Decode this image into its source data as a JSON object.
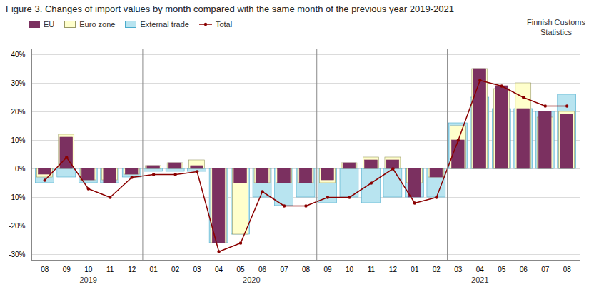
{
  "chart_data": {
    "type": "bar",
    "title": "Figure 3. Changes of import values by month compared with the same month of the previous year 2019-2021",
    "categories": [
      "08",
      "09",
      "10",
      "11",
      "12",
      "01",
      "02",
      "03",
      "04",
      "05",
      "06",
      "07",
      "08",
      "09",
      "10",
      "11",
      "12",
      "01",
      "02",
      "03",
      "04",
      "05",
      "06",
      "07",
      "08"
    ],
    "series": [
      {
        "name": "EU",
        "type": "bar",
        "color": "#7B3060",
        "values": [
          -2,
          11,
          -4,
          -5,
          -2,
          1,
          2,
          1,
          -26,
          -5,
          -5,
          -5,
          -5,
          -4,
          2,
          3,
          3,
          -10,
          -3,
          10,
          35,
          29,
          21,
          20,
          19
        ]
      },
      {
        "name": "Euro zone",
        "type": "bar",
        "color": "#FFFFCC",
        "values": [
          -3,
          12,
          -4,
          -4,
          -2,
          1,
          2,
          3,
          -26,
          -23,
          -5,
          -5,
          -5,
          -5,
          2,
          4,
          4,
          -5,
          -3,
          15,
          35,
          28,
          30,
          18,
          20
        ]
      },
      {
        "name": "External trade",
        "type": "bar",
        "color": "#B8E4F0",
        "values": [
          -5,
          -3,
          -5,
          -5,
          -3,
          -1,
          -1,
          -1,
          -26,
          -23,
          -10,
          -13,
          -10,
          -12,
          -10,
          -12,
          -10,
          -10,
          -10,
          16,
          25,
          21,
          21,
          20,
          26
        ]
      },
      {
        "name": "Total",
        "type": "line",
        "color": "#8B0000",
        "marker": "circle",
        "values": [
          -4,
          4,
          -7,
          -10,
          -3,
          -2,
          -2,
          -1,
          -29,
          -26,
          -8,
          -13,
          -13,
          -10,
          -10,
          -5,
          0,
          -12,
          -10,
          10,
          31,
          29,
          25,
          22,
          22
        ]
      }
    ],
    "ylim": [
      -32,
      42
    ],
    "yticks": [
      {
        "value": -30,
        "label": "-30%"
      },
      {
        "value": -20,
        "label": "-20%"
      },
      {
        "value": -10,
        "label": "-10%"
      },
      {
        "value": 0,
        "label": "0%"
      },
      {
        "value": 10,
        "label": "10%"
      },
      {
        "value": 20,
        "label": "20%"
      },
      {
        "value": 30,
        "label": "30%"
      },
      {
        "value": 40,
        "label": "40%"
      }
    ],
    "grid": true,
    "legend": "top-left",
    "annotations": [
      {
        "text": "2019",
        "x": 2.0
      },
      {
        "text": "2020",
        "x": 9.5
      },
      {
        "text": "2021",
        "x": 20.0
      },
      {
        "type": "vline",
        "x": 4.5
      },
      {
        "type": "vline",
        "x": 12.5
      },
      {
        "type": "vline",
        "x": 18.5
      },
      {
        "text": "Finnish Customs\nStatistics"
      }
    ]
  }
}
